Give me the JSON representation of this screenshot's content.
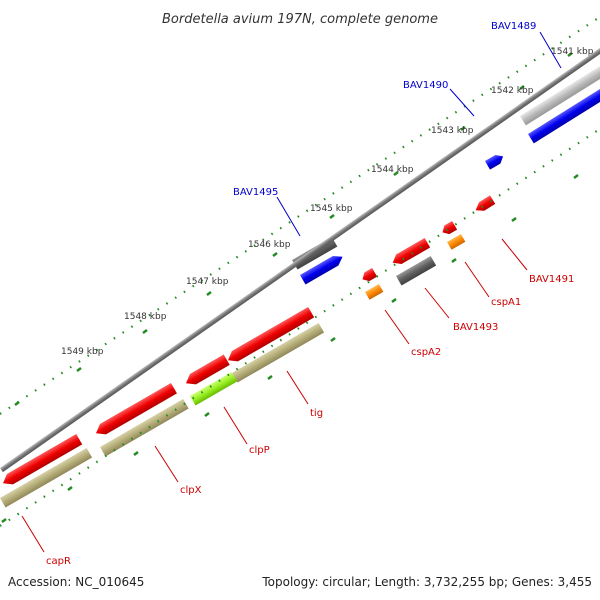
{
  "title": "Bordetella avium 197N, complete genome",
  "footer": {
    "accession": "Accession: NC_010645",
    "stats": "Topology: circular; Length: 3,732,255 bp; Genes: 3,455"
  },
  "ticks": [
    "1541 kbp",
    "1542 kbp",
    "1543 kbp",
    "1544 kbp",
    "1545 kbp",
    "1546 kbp",
    "1547 kbp",
    "1548 kbp",
    "1549 kbp"
  ],
  "genes": [
    {
      "id": "BAV1489",
      "color": "#0000cc"
    },
    {
      "id": "BAV1490",
      "color": "#0000cc"
    },
    {
      "id": "BAV1495",
      "color": "#0000cc"
    },
    {
      "id": "BAV1491",
      "color": "#cc0000"
    },
    {
      "id": "cspA1",
      "color": "#cc0000"
    },
    {
      "id": "BAV1493",
      "color": "#cc0000"
    },
    {
      "id": "cspA2",
      "color": "#cc0000"
    },
    {
      "id": "tig",
      "color": "#cc0000"
    },
    {
      "id": "clpP",
      "color": "#cc0000"
    },
    {
      "id": "clpX",
      "color": "#cc0000"
    },
    {
      "id": "capR",
      "color": "#cc0000"
    }
  ],
  "colors": {
    "cds_red": "#ee0000",
    "cds_blue": "#0000ee",
    "cds_gray": "#555555",
    "rna_orange": "#ff8800",
    "gene_olive": "#b5ad78",
    "gene_green": "#99ee22",
    "backbone": "#777777",
    "tick_green": "#228b22"
  }
}
